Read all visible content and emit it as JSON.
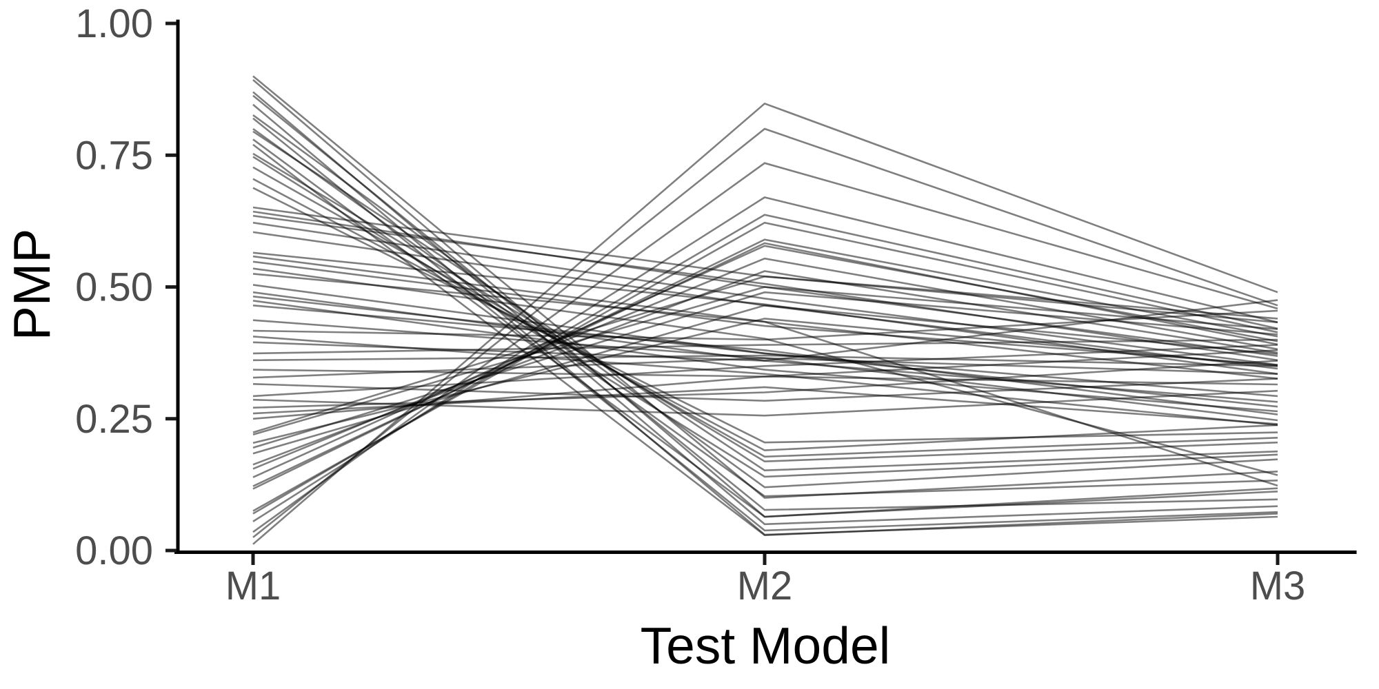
{
  "chart_data": {
    "type": "line",
    "variant": "parallel-coordinates-spaghetti",
    "title": "",
    "xlabel": "Test Model",
    "ylabel": "PMP",
    "categories": [
      "M1",
      "M2",
      "M3"
    ],
    "ylim": [
      0.0,
      1.0
    ],
    "yticks": [
      0.0,
      0.25,
      0.5,
      0.75,
      1.0
    ],
    "ytick_labels": [
      "0.00",
      "0.25",
      "0.50",
      "0.75",
      "1.00"
    ],
    "grid": false,
    "legend": false,
    "line_color": "#000000",
    "line_opacity": 0.5,
    "line_width": 2.6,
    "axis_color": "#000000",
    "tick_color": "#1a1a1a",
    "tick_label_color": "#4d4d4d",
    "axis_title_color": "#000000",
    "lines": [
      [
        0.9,
        0.1,
        0.15
      ],
      [
        0.893,
        0.064,
        0.118
      ],
      [
        0.87,
        0.05,
        0.084
      ],
      [
        0.863,
        0.077,
        0.097
      ],
      [
        0.846,
        0.03,
        0.064
      ],
      [
        0.826,
        0.12,
        0.173
      ],
      [
        0.82,
        0.038,
        0.073
      ],
      [
        0.8,
        0.103,
        0.133
      ],
      [
        0.795,
        0.152,
        0.188
      ],
      [
        0.78,
        0.064,
        0.112
      ],
      [
        0.77,
        0.029,
        0.07
      ],
      [
        0.753,
        0.169,
        0.205
      ],
      [
        0.747,
        0.14,
        0.182
      ],
      [
        0.727,
        0.178,
        0.214
      ],
      [
        0.705,
        0.19,
        0.238
      ],
      [
        0.688,
        0.205,
        0.224
      ],
      [
        0.012,
        0.848,
        0.49
      ],
      [
        0.025,
        0.8,
        0.465
      ],
      [
        0.035,
        0.735,
        0.459
      ],
      [
        0.055,
        0.67,
        0.433
      ],
      [
        0.07,
        0.637,
        0.421
      ],
      [
        0.075,
        0.622,
        0.414
      ],
      [
        0.117,
        0.59,
        0.406
      ],
      [
        0.122,
        0.583,
        0.391
      ],
      [
        0.139,
        0.578,
        0.397
      ],
      [
        0.155,
        0.554,
        0.382
      ],
      [
        0.163,
        0.53,
        0.375
      ],
      [
        0.184,
        0.465,
        0.373
      ],
      [
        0.195,
        0.49,
        0.41
      ],
      [
        0.204,
        0.44,
        0.35
      ],
      [
        0.22,
        0.5,
        0.42
      ],
      [
        0.224,
        0.52,
        0.44
      ],
      [
        0.651,
        0.52,
        0.433
      ],
      [
        0.643,
        0.5,
        0.369
      ],
      [
        0.635,
        0.506,
        0.361
      ],
      [
        0.622,
        0.478,
        0.352
      ],
      [
        0.604,
        0.465,
        0.345
      ],
      [
        0.565,
        0.467,
        0.335
      ],
      [
        0.558,
        0.434,
        0.326
      ],
      [
        0.548,
        0.426,
        0.352
      ],
      [
        0.535,
        0.402,
        0.143
      ],
      [
        0.525,
        0.434,
        0.123
      ],
      [
        0.504,
        0.374,
        0.293
      ],
      [
        0.49,
        0.36,
        0.282
      ],
      [
        0.482,
        0.374,
        0.273
      ],
      [
        0.474,
        0.343,
        0.264
      ],
      [
        0.465,
        0.38,
        0.258
      ],
      [
        0.437,
        0.365,
        0.247
      ],
      [
        0.417,
        0.4,
        0.455
      ],
      [
        0.406,
        0.335,
        0.238
      ],
      [
        0.395,
        0.36,
        0.475
      ],
      [
        0.374,
        0.39,
        0.4
      ],
      [
        0.361,
        0.37,
        0.35
      ],
      [
        0.343,
        0.33,
        0.38
      ],
      [
        0.328,
        0.365,
        0.335
      ],
      [
        0.316,
        0.284,
        0.326
      ],
      [
        0.293,
        0.35,
        0.39
      ],
      [
        0.286,
        0.256,
        0.303
      ],
      [
        0.271,
        0.3,
        0.36
      ],
      [
        0.26,
        0.31,
        0.24
      ],
      [
        0.25,
        0.33,
        0.315
      ]
    ]
  }
}
